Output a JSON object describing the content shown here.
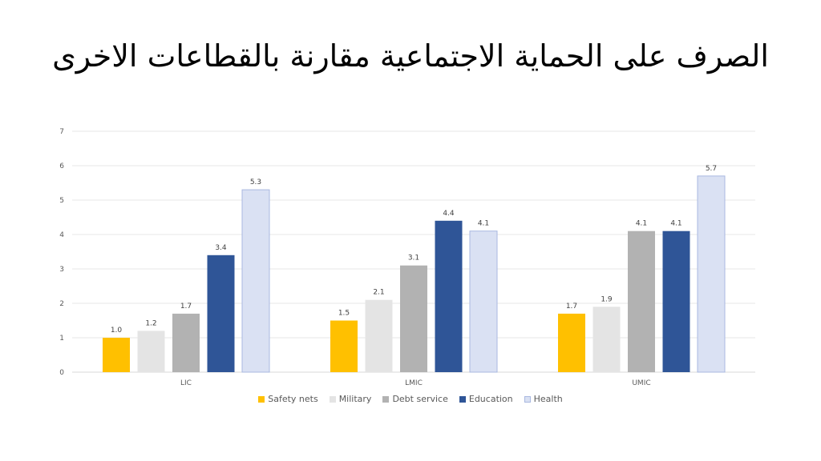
{
  "slide": {
    "title": "الصرف على الحماية الاجتماعية مقارنة بالقطاعات الاخرى"
  },
  "chart_data": {
    "type": "bar",
    "categories": [
      "LIC",
      "LMIC",
      "UMIC"
    ],
    "series": [
      {
        "name": "Safety nets",
        "values": [
          1.0,
          1.5,
          1.7
        ],
        "color": "#FFC000",
        "labels": [
          "1.0",
          "1.5",
          "1.7"
        ]
      },
      {
        "name": "Military",
        "values": [
          1.2,
          2.1,
          1.9
        ],
        "color": "#E4E4E4",
        "labels": [
          "1.2",
          "2.1",
          "1.9"
        ]
      },
      {
        "name": "Debt service",
        "values": [
          1.7,
          3.1,
          4.1
        ],
        "color": "#B2B2B2",
        "labels": [
          "1.7",
          "3.1",
          "4.1"
        ]
      },
      {
        "name": "Education",
        "values": [
          3.4,
          4.4,
          4.1
        ],
        "color": "#2F5597",
        "labels": [
          "3.4",
          "4.4",
          "4.1"
        ]
      },
      {
        "name": "Health",
        "values": [
          5.3,
          4.1,
          5.7
        ],
        "color": "#DAE1F3",
        "labels": [
          "5.3",
          "4.1",
          "5.7"
        ]
      }
    ],
    "yticks": [
      "0",
      "1",
      "2",
      "3",
      "4",
      "5",
      "6",
      "7"
    ],
    "ylim": [
      0,
      7
    ],
    "grid": true,
    "legend": "bottom"
  }
}
